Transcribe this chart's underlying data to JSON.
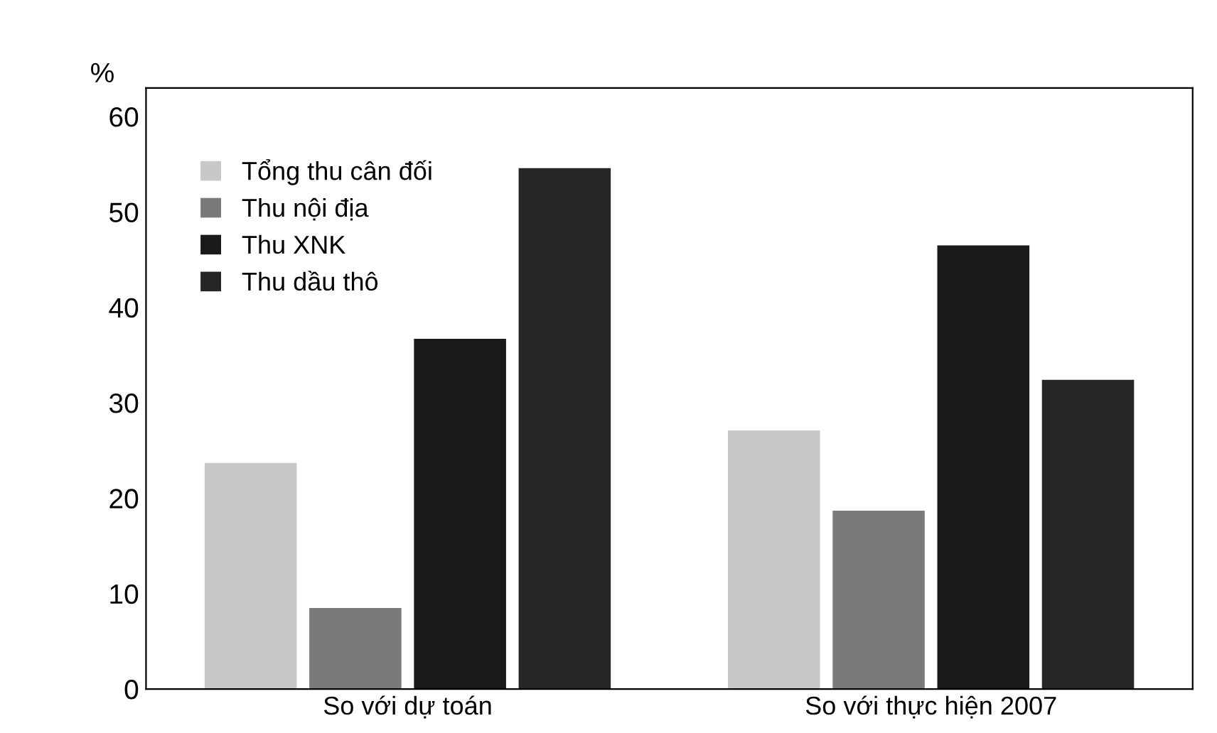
{
  "chart_data": {
    "type": "bar",
    "ylabel": "%",
    "categories": [
      "So với dự toán",
      "So với thực hiện 2007"
    ],
    "series": [
      {
        "name": "Tổng thu cân đối",
        "color": "#c8c8c8",
        "values": [
          23.7,
          27.1
        ]
      },
      {
        "name": "Thu nội địa",
        "color": "#7a7a7a",
        "values": [
          8.5,
          18.7
        ]
      },
      {
        "name": "Thu XNK",
        "color": "#1a1a1a",
        "values": [
          36.7,
          46.5
        ]
      },
      {
        "name": "Thu dầu thô",
        "color": "#262626",
        "values": [
          54.6,
          32.4
        ]
      }
    ],
    "ylim": [
      0,
      63
    ],
    "yticks": [
      0,
      10,
      20,
      30,
      40,
      50,
      60
    ],
    "grid": false,
    "legend": "top left"
  }
}
